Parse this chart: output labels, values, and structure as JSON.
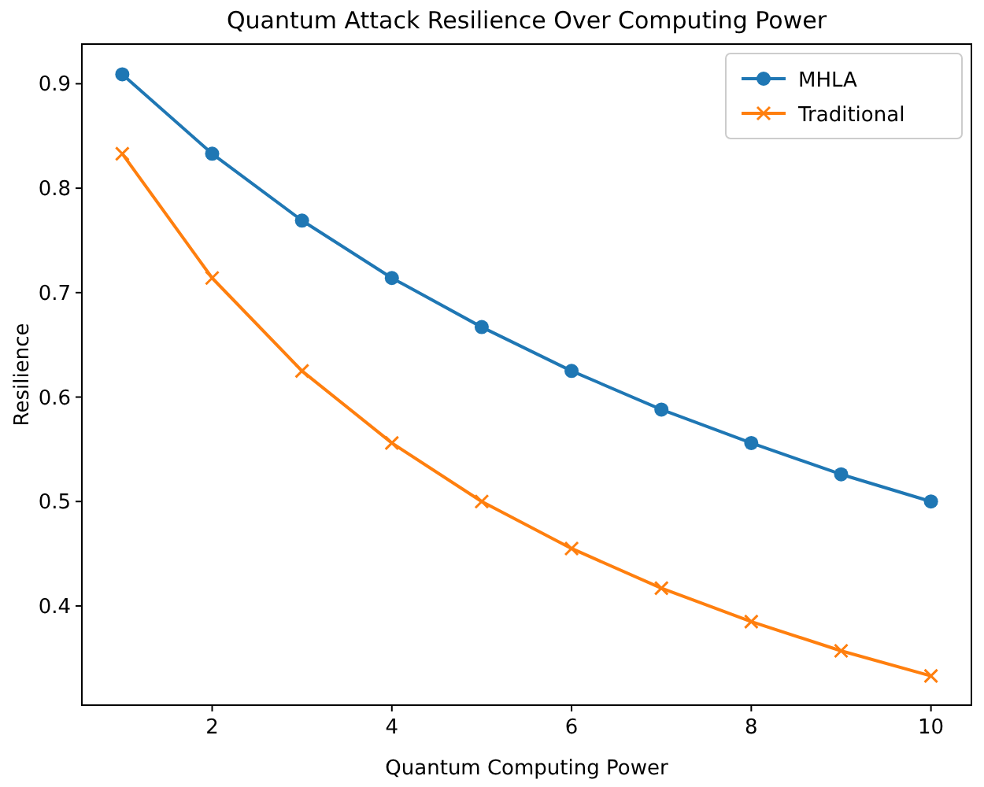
{
  "chart_data": {
    "type": "line",
    "title": "Quantum Attack Resilience Over Computing Power",
    "xlabel": "Quantum Computing Power",
    "ylabel": "Resilience",
    "x": [
      1,
      2,
      3,
      4,
      5,
      6,
      7,
      8,
      9,
      10
    ],
    "series": [
      {
        "name": "MHLA",
        "color": "#1f77b4",
        "marker": "circle",
        "values": [
          0.909,
          0.833,
          0.769,
          0.714,
          0.667,
          0.625,
          0.588,
          0.556,
          0.526,
          0.5
        ]
      },
      {
        "name": "Traditional",
        "color": "#ff7f0e",
        "marker": "cross",
        "values": [
          0.833,
          0.714,
          0.625,
          0.556,
          0.5,
          0.455,
          0.417,
          0.385,
          0.357,
          0.333
        ]
      }
    ],
    "xlim": [
      0.55,
      10.45
    ],
    "ylim": [
      0.305,
      0.938
    ],
    "xticks": [
      2,
      4,
      6,
      8,
      10
    ],
    "yticks": [
      0.4,
      0.5,
      0.6,
      0.7,
      0.8,
      0.9
    ],
    "legend": "top right",
    "grid": false,
    "line_style": "solid"
  }
}
